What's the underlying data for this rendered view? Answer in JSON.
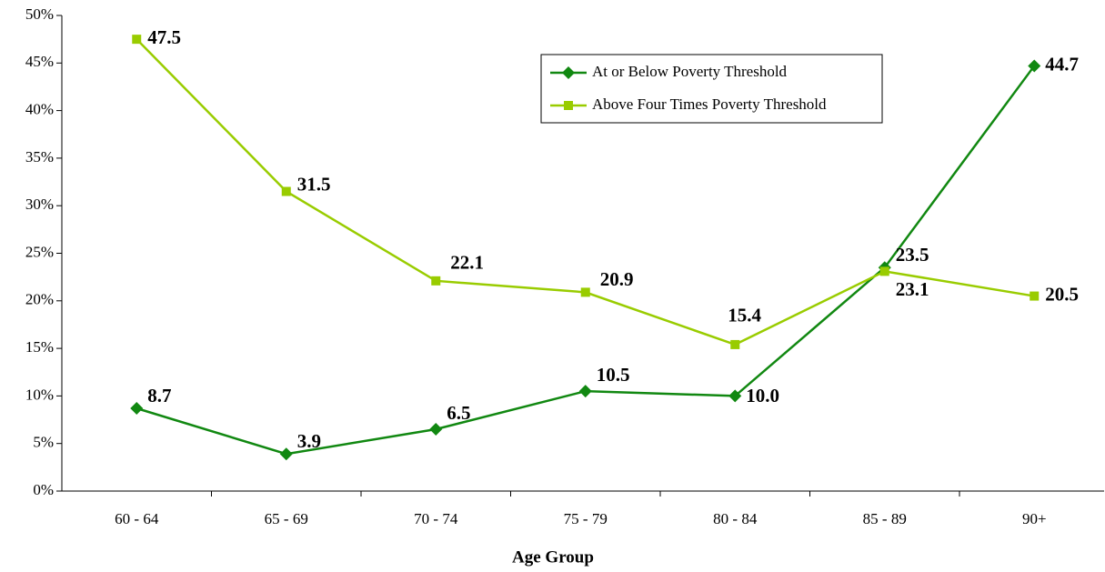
{
  "chart_data": {
    "type": "line",
    "xlabel": "Age Group",
    "categories": [
      "60 - 64",
      "65 - 69",
      "70 - 74",
      "75 - 79",
      "80 - 84",
      "85 - 89",
      "90+"
    ],
    "series": [
      {
        "name": "At or Below Poverty Threshold",
        "color": "#118811",
        "marker": "diamond",
        "values": [
          8.7,
          3.9,
          6.5,
          10.5,
          10.0,
          23.5,
          44.7
        ],
        "value_labels": [
          "8.7",
          "3.9",
          "6.5",
          "10.5",
          "10.0",
          "23.5",
          "44.7"
        ]
      },
      {
        "name": "Above Four Times Poverty Threshold",
        "color": "#99cc00",
        "marker": "square",
        "values": [
          47.5,
          31.5,
          22.1,
          20.9,
          15.4,
          23.1,
          20.5
        ],
        "value_labels": [
          "47.5",
          "31.5",
          "22.1",
          "20.9",
          "15.4",
          "23.1",
          "20.5"
        ]
      }
    ],
    "ylim": [
      0,
      50
    ],
    "yticks": [
      {
        "value": 0,
        "label": "0%"
      },
      {
        "value": 5,
        "label": "5%"
      },
      {
        "value": 10,
        "label": "10%"
      },
      {
        "value": 15,
        "label": "15%"
      },
      {
        "value": 20,
        "label": "20%"
      },
      {
        "value": 25,
        "label": "25%"
      },
      {
        "value": 30,
        "label": "30%"
      },
      {
        "value": 35,
        "label": "35%"
      },
      {
        "value": 40,
        "label": "40%"
      },
      {
        "value": 45,
        "label": "45%"
      },
      {
        "value": 50,
        "label": "50%"
      }
    ],
    "grid": false,
    "legend": "upper right"
  }
}
